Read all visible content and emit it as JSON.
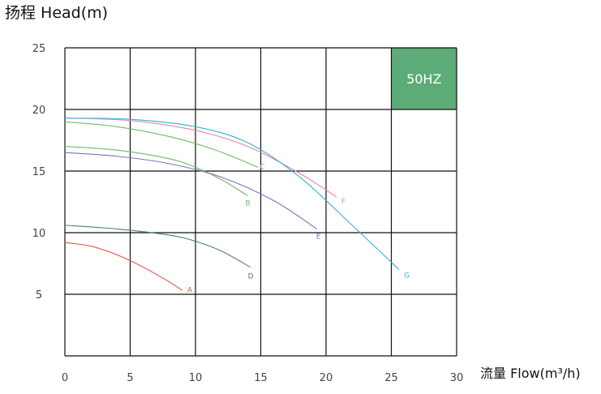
{
  "chart_data": {
    "type": "line",
    "ylabel": "扬程 Head(m)",
    "xlabel": "流量 Flow(m³/h)",
    "xlim": [
      0,
      30
    ],
    "ylim": [
      0,
      25
    ],
    "x_ticks": [
      0,
      5,
      10,
      15,
      20,
      25,
      30
    ],
    "y_ticks": [
      5,
      10,
      15,
      20,
      25
    ],
    "grid": true,
    "badge": {
      "text": "50HZ",
      "color": "#5dab77",
      "x_range": [
        25,
        30
      ],
      "y_range": [
        20,
        25
      ]
    },
    "series": [
      {
        "name": "A",
        "color": "#d9553f",
        "x": [
          0,
          2,
          4,
          6,
          8,
          9
        ],
        "y": [
          9.2,
          8.9,
          8.2,
          7.2,
          6.0,
          5.3
        ]
      },
      {
        "name": "B",
        "color": "#6fb96f",
        "x": [
          0,
          4,
          8,
          10,
          12,
          14
        ],
        "y": [
          17.0,
          16.7,
          16.0,
          15.3,
          14.3,
          13.0
        ]
      },
      {
        "name": "C",
        "color": "#6fb96f",
        "x": [
          0,
          4,
          8,
          11,
          13,
          14.8
        ],
        "y": [
          19.0,
          18.6,
          17.8,
          16.9,
          16.1,
          15.3
        ]
      },
      {
        "name": "D",
        "color": "#4f7f6f",
        "x": [
          0,
          4,
          8,
          10,
          12,
          14.2
        ],
        "y": [
          10.6,
          10.3,
          9.8,
          9.3,
          8.5,
          7.2
        ]
      },
      {
        "name": "E",
        "color": "#7f72b6",
        "x": [
          0,
          4,
          8,
          12,
          16,
          19.3
        ],
        "y": [
          16.5,
          16.2,
          15.6,
          14.5,
          12.6,
          10.3
        ]
      },
      {
        "name": "F",
        "color": "#e487a8",
        "x": [
          0,
          5,
          10,
          14,
          18,
          20.8
        ],
        "y": [
          19.3,
          19.1,
          18.3,
          17.0,
          14.8,
          12.9
        ]
      },
      {
        "name": "G",
        "color": "#34b1d6",
        "x": [
          0,
          5,
          10,
          14,
          18,
          22,
          25.6
        ],
        "y": [
          19.3,
          19.2,
          18.6,
          17.3,
          14.5,
          10.6,
          7.0
        ]
      }
    ]
  }
}
